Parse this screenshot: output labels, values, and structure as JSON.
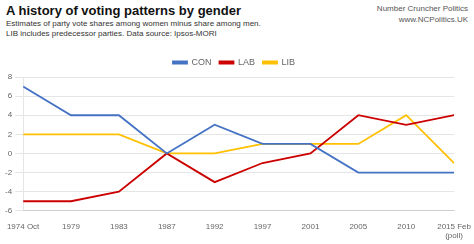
{
  "chart_data": {
    "type": "line",
    "title": "A history of voting patterns by gender",
    "subtitle": [
      "Estimates of party vote shares among women minus share among men.",
      "LIB includes predecessor parties. Data source: Ipsos-MORI"
    ],
    "annotations": [
      "Number Cruncher Politics",
      "www.NCPolitics.UK"
    ],
    "categories": [
      "1974 Oct",
      "1979",
      "1983",
      "1987",
      "1992",
      "1997",
      "2001",
      "2005",
      "2010",
      "2015 Feb\n(poll)"
    ],
    "series": [
      {
        "name": "CON",
        "color": "#4472C4",
        "values": [
          7,
          4,
          4,
          0,
          3,
          1,
          1,
          -2,
          -2,
          -2
        ]
      },
      {
        "name": "LAB",
        "color": "#CC0000",
        "values": [
          -5,
          -5,
          -4,
          0,
          -3,
          -1,
          0,
          4,
          3,
          4
        ]
      },
      {
        "name": "LIB",
        "color": "#FFC000",
        "values": [
          2,
          2,
          2,
          0,
          0,
          1,
          1,
          1,
          4,
          -1
        ]
      }
    ],
    "ylim": [
      -6,
      8
    ],
    "yticks": [
      -6,
      -4,
      -2,
      0,
      2,
      4,
      6,
      8
    ],
    "grid": true,
    "legend": "top"
  }
}
